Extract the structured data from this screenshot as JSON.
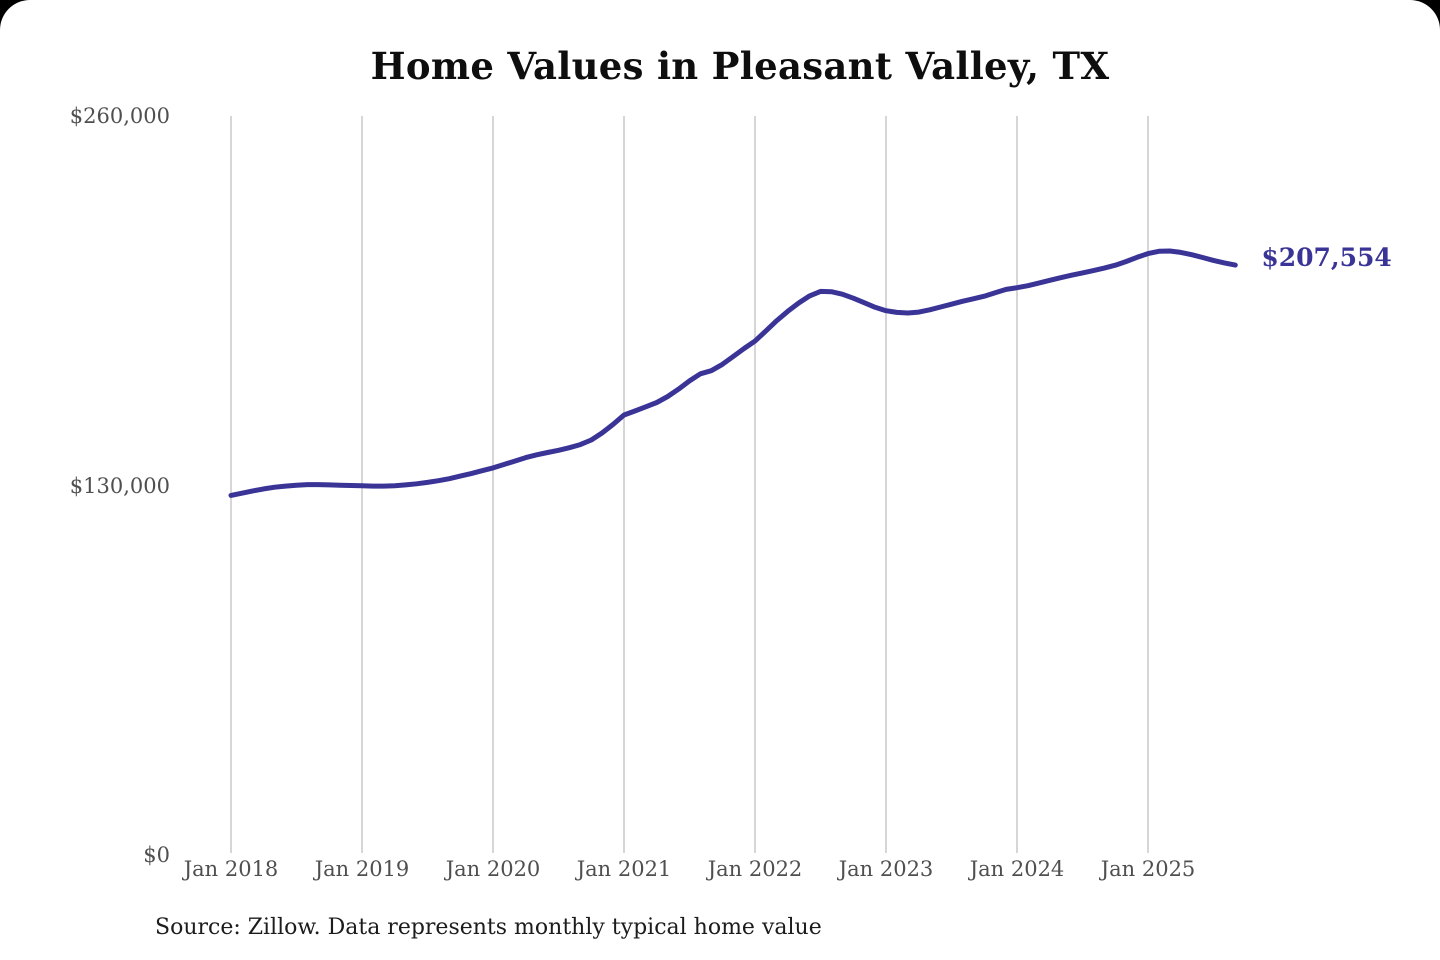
{
  "chart_data": {
    "type": "line",
    "title": "Home Values in Pleasant Valley, TX",
    "source_note": "Source: Zillow. Data represents monthly typical home value",
    "series_name": "Monthly typical home value",
    "frequency": "monthly",
    "start_month": "Jan 2018",
    "end_month": "Sep 2025",
    "values": [
      126500,
      127300,
      128100,
      128800,
      129400,
      129800,
      130100,
      130300,
      130300,
      130200,
      130100,
      130000,
      129900,
      129800,
      129800,
      129900,
      130200,
      130600,
      131100,
      131700,
      132400,
      133300,
      134200,
      135200,
      136200,
      137400,
      138600,
      139800,
      140800,
      141600,
      142400,
      143300,
      144400,
      146000,
      148500,
      151500,
      154800,
      156200,
      157700,
      159200,
      161300,
      163900,
      166800,
      169300,
      170400,
      172600,
      175400,
      178200,
      180800,
      184400,
      188000,
      191300,
      194200,
      196700,
      198300,
      198200,
      197300,
      195900,
      194300,
      192700,
      191500,
      190900,
      190700,
      191000,
      191800,
      192800,
      193800,
      194800,
      195700,
      196600,
      197800,
      199000,
      199600,
      200300,
      201200,
      202200,
      203100,
      204000,
      204800,
      205600,
      206500,
      207500,
      208800,
      210300,
      211600,
      212400,
      212500,
      212000,
      211200,
      210200,
      209200,
      208300,
      207554
    ],
    "end_value": 207554,
    "end_label": "$207,554",
    "x_tick_labels": [
      "Jan 2018",
      "Jan 2019",
      "Jan 2020",
      "Jan 2021",
      "Jan 2022",
      "Jan 2023",
      "Jan 2024",
      "Jan 2025"
    ],
    "x_tick_month_indexes": [
      0,
      12,
      24,
      36,
      48,
      60,
      72,
      84
    ],
    "y_ticks": [
      {
        "label": "$260,000",
        "value": 260000
      },
      {
        "label": "$130,000",
        "value": 130000
      },
      {
        "label": "$0",
        "value": 0
      }
    ],
    "ylim": [
      0,
      260000
    ],
    "grid": "vertical-only",
    "legend": "none",
    "line_color": "#3a3497",
    "grid_color": "#c9c9c9",
    "axis_label_color": "#4f4f4f",
    "title_color": "#0e0e0e"
  }
}
